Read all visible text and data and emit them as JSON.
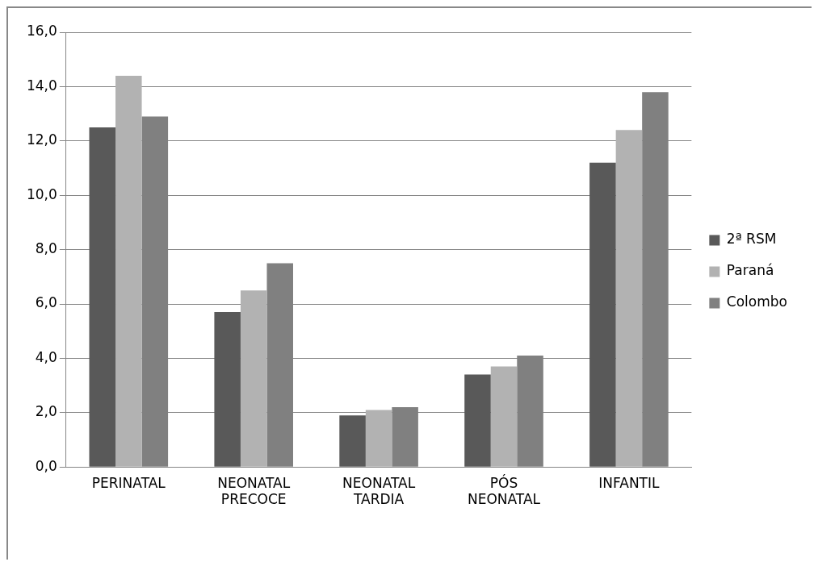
{
  "chart_data": {
    "type": "bar",
    "categories": [
      "PERINATAL",
      "NEONATAL PRECOCE",
      "NEONATAL TARDIA",
      "PÓS NEONATAL",
      "INFANTIL"
    ],
    "series": [
      {
        "name": "2ª RSM",
        "color": "#595959",
        "values": [
          12.5,
          5.7,
          1.9,
          3.4,
          11.2
        ]
      },
      {
        "name": "Paraná",
        "color": "#b2b2b2",
        "values": [
          14.4,
          6.5,
          2.1,
          3.7,
          12.4
        ]
      },
      {
        "name": "Colombo",
        "color": "#808080",
        "values": [
          12.9,
          7.5,
          2.2,
          4.1,
          13.8
        ]
      }
    ],
    "ylim": [
      0,
      16
    ],
    "yticks": [
      {
        "value": 0,
        "label": "0,0"
      },
      {
        "value": 2,
        "label": "2,0"
      },
      {
        "value": 4,
        "label": "4,0"
      },
      {
        "value": 6,
        "label": "6,0"
      },
      {
        "value": 8,
        "label": "8,0"
      },
      {
        "value": 10,
        "label": "10,0"
      },
      {
        "value": 12,
        "label": "12,0"
      },
      {
        "value": 14,
        "label": "14,0"
      },
      {
        "value": 16,
        "label": "16,0"
      }
    ],
    "grid": "y",
    "legend": "right"
  }
}
